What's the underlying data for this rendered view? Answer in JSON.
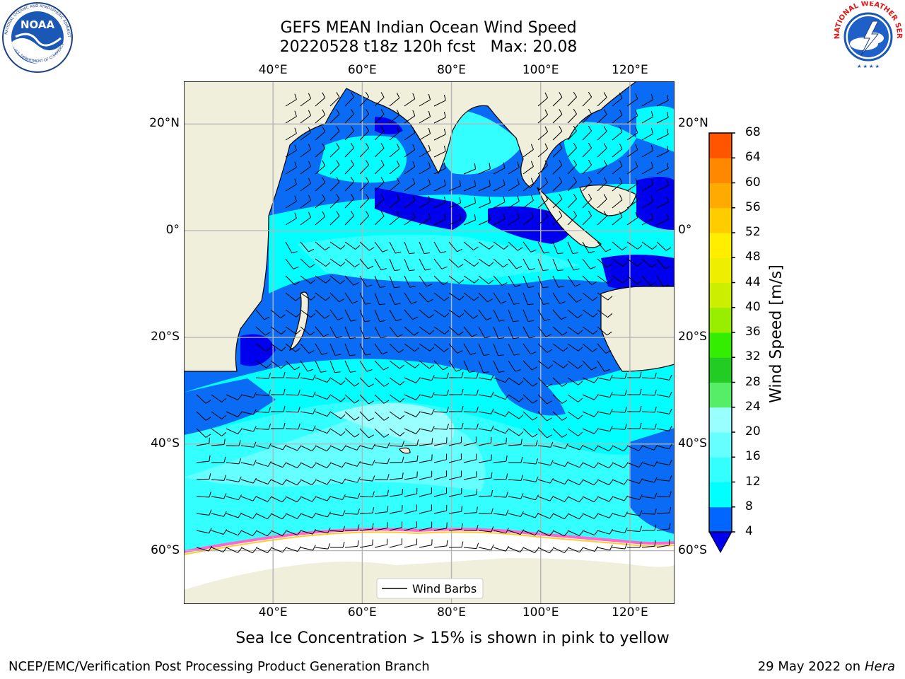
{
  "title": {
    "line1": "GEFS MEAN Indian Ocean Wind Speed",
    "line2": "20220528 t18z 120h fcst   Max: 20.08"
  },
  "map": {
    "lon_ticks": [
      "40°E",
      "60°E",
      "80°E",
      "100°E",
      "120°E"
    ],
    "lat_ticks": [
      "20°N",
      "0°",
      "20°S",
      "40°S",
      "60°S"
    ],
    "lon_range": [
      20,
      130
    ],
    "lat_range": [
      -70,
      28
    ],
    "legend_label": "Wind Barbs",
    "colors": {
      "land": "#efefdc",
      "ice": "#ffffff",
      "ice_edge": [
        "#ff66cc",
        "#ff99ff",
        "#ffcc33"
      ]
    }
  },
  "colorbar": {
    "label": "Wind Speed [m/s]",
    "ticks": [
      "4",
      "8",
      "12",
      "16",
      "20",
      "24",
      "28",
      "32",
      "36",
      "40",
      "44",
      "48",
      "52",
      "56",
      "60",
      "64",
      "68"
    ],
    "colors": [
      "#0066ff",
      "#00ffff",
      "#33ffff",
      "#66ffff",
      "#99ffff",
      "#55ee66",
      "#22cc22",
      "#33ee00",
      "#99ee00",
      "#ccee00",
      "#eeee00",
      "#ffee00",
      "#ffcc00",
      "#ffaa00",
      "#ff8800",
      "#ff5500",
      "#ff2200",
      "#ff0000"
    ],
    "extend_color": "#0000ee"
  },
  "caption": "Sea Ice Concentration > 15% is shown in pink to yellow",
  "footer": {
    "left": "NCEP/EMC/Verification Post Processing Product Generation Branch",
    "date": "29 May 2022 on",
    "host": "Hera"
  },
  "logos": {
    "left_text": "NOAA",
    "left_ring": "NATIONAL OCEANIC AND ATMOSPHERIC ADMINISTRATION",
    "left_ring_bottom": "U.S. DEPARTMENT OF COMMERCE",
    "right_ring": "NATIONAL WEATHER SERVICE"
  }
}
